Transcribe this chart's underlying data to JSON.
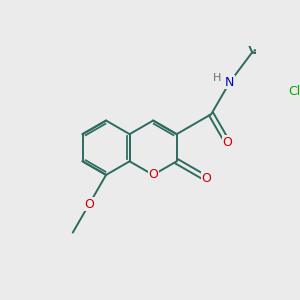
{
  "bg_color": "#ebebeb",
  "bond_color": "#2d6b5e",
  "bond_width": 1.4,
  "atom_colors": {
    "O": "#cc0000",
    "N": "#0000bb",
    "H": "#707070",
    "Cl": "#00aa00"
  },
  "font_size": 9
}
